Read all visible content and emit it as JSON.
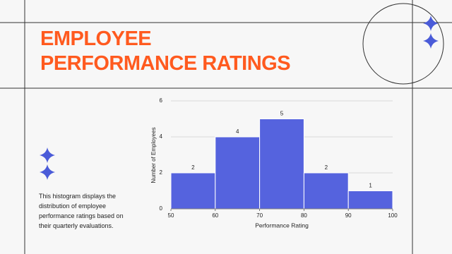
{
  "slide": {
    "title": [
      "EMPLOYEE",
      "PERFORMANCE RATINGS"
    ],
    "description": "This histogram displays the distribution of employee performance ratings based on their quarterly evaluations."
  },
  "chart_data": {
    "type": "histogram",
    "bins": [
      50,
      60,
      70,
      80,
      90,
      100
    ],
    "values": [
      2,
      4,
      5,
      2,
      1
    ],
    "color": "#5563de",
    "xlim": [
      50,
      100
    ],
    "ylim": [
      0,
      6
    ],
    "xticks": [
      50,
      60,
      70,
      80,
      90,
      100
    ],
    "yticks": [
      0,
      2,
      4,
      6
    ],
    "grid": true,
    "xlabel": "Performance Rating",
    "ylabel": "Number of Employees"
  }
}
